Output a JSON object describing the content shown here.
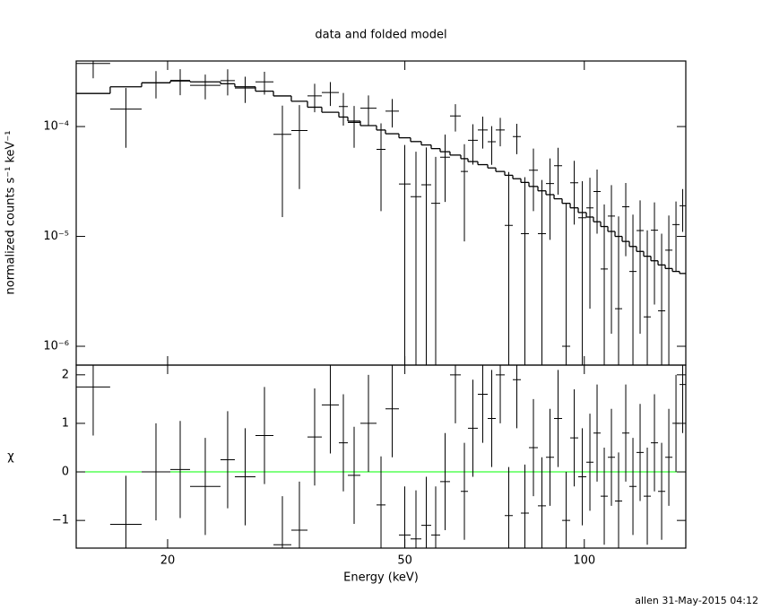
{
  "chart_data": {
    "type": "errorbar",
    "title": "data and folded model",
    "xlabel": "Energy (keV)",
    "xlog": true,
    "xlim": [
      14.05,
      148.0
    ],
    "xticks": [
      20,
      50,
      100
    ],
    "bins": [
      14.05,
      16.02,
      18.09,
      20.21,
      21.81,
      24.53,
      25.93,
      28.08,
      30.1,
      32.25,
      34.33,
      36.28,
      38.75,
      40.12,
      42.11,
      44.82,
      46.4,
      48.87,
      51.12,
      53.29,
      55.36,
      57.31,
      59.53,
      62.06,
      63.81,
      66.28,
      68.86,
      71.04,
      73.54,
      75.87,
      78.27,
      80.75,
      83.59,
      86.24,
      88.97,
      91.79,
      94.7,
      97.69,
      100.79,
      103.61,
      106.52,
      109.52,
      112.59,
      115.75,
      119.01,
      122.35,
      125.78,
      129.32,
      132.95,
      136.7,
      140.54,
      144.48,
      148.0
    ],
    "panels": [
      {
        "ylabel": "normalized counts s⁻¹ keV⁻¹",
        "ylog": true,
        "ylim": [
          6.74e-07,
          0.000395
        ],
        "yticks": [
          {
            "value": 0.0001,
            "label": "10⁻⁴"
          },
          {
            "value": 1e-05,
            "label": "10⁻⁵"
          },
          {
            "value": 1e-06,
            "label": "10⁻⁶"
          }
        ],
        "series": [
          {
            "style": "errorbar",
            "color": "#000000",
            "values": [
              0.000375,
              0.000144,
              0.00025,
              0.000263,
              0.000237,
              0.000262,
              0.000224,
              0.000255,
              8.5e-05,
              9.2e-05,
              0.00019,
              0.000204,
              0.000152,
              0.000109,
              0.000147,
              6.2e-05,
              0.000138,
              3e-05,
              2.3e-05,
              2.95e-05,
              2e-05,
              5.26e-05,
              0.000125,
              3.9e-05,
              7.5e-05,
              9.3e-05,
              7.28e-05,
              9.3e-05,
              1.26e-05,
              8.1e-05,
              1.06e-05,
              4e-05,
              1.06e-05,
              3.03e-05,
              4.4e-05,
              1e-06,
              3.08e-05,
              1.48e-05,
              1.82e-05,
              2.56e-05,
              5.05e-06,
              1.53e-05,
              2.2e-06,
              1.86e-05,
              4.8e-06,
              1.13e-05,
              1.85e-06,
              1.14e-05,
              2.1e-06,
              7.5e-06,
              1.28e-05,
              1.9e-05
            ],
            "errors": [
              0.0001,
              8e-05,
              7e-05,
              7e-05,
              6e-05,
              7e-05,
              6e-05,
              6e-05,
              7e-05,
              6.5e-05,
              5.5e-05,
              5e-05,
              5e-05,
              4.5e-05,
              4.5e-05,
              4.5e-05,
              4e-05,
              3.8e-05,
              3.6e-05,
              3.5e-05,
              3.3e-05,
              3.2e-05,
              3.5e-05,
              3e-05,
              3e-05,
              3e-05,
              2.8e-05,
              2.7e-05,
              2.6e-05,
              2.5e-05,
              2.4e-05,
              2.3e-05,
              2.2e-05,
              2.1e-05,
              2e-05,
              1.9e-05,
              1.8e-05,
              1.7e-05,
              1.6e-05,
              1.5e-05,
              1.45e-05,
              1.4e-05,
              1.3e-05,
              1.2e-05,
              1.1e-05,
              1e-05,
              9.5e-06,
              9e-06,
              8.5e-06,
              8e-06,
              8e-06,
              8e-06
            ]
          },
          {
            "style": "step",
            "color": "#000000",
            "values": [
              0.0002,
              0.00023,
              0.00025,
              0.00026,
              0.000255,
              0.000245,
              0.00023,
              0.00021,
              0.00019,
              0.00017,
              0.00015,
              0.000135,
              0.000122,
              0.000112,
              0.000102,
              9.3e-05,
              8.6e-05,
              7.9e-05,
              7.3e-05,
              6.8e-05,
              6.3e-05,
              5.9e-05,
              5.5e-05,
              5.1e-05,
              4.8e-05,
              4.5e-05,
              4.2e-05,
              3.9e-05,
              3.6e-05,
              3.35e-05,
              3.1e-05,
              2.85e-05,
              2.6e-05,
              2.4e-05,
              2.2e-05,
              2e-05,
              1.82e-05,
              1.65e-05,
              1.5e-05,
              1.36e-05,
              1.23e-05,
              1.11e-05,
              1e-05,
              9e-06,
              8.1e-06,
              7.3e-06,
              6.6e-06,
              6e-06,
              5.5e-06,
              5.1e-06,
              4.8e-06,
              4.6e-06
            ]
          }
        ]
      },
      {
        "ylabel": "χ",
        "ylog": false,
        "ylim": [
          -1.57,
          2.2
        ],
        "yticks": [
          {
            "value": -1,
            "label": "−1"
          },
          0,
          1,
          2
        ],
        "reference_line": {
          "value": 0,
          "color": "#00ff00"
        },
        "series": [
          {
            "style": "errorbar",
            "color": "#000000",
            "values": [
              1.75,
              -1.08,
              0.0,
              0.05,
              -0.3,
              0.25,
              -0.1,
              0.75,
              -1.5,
              -1.2,
              0.72,
              1.38,
              0.6,
              -0.07,
              1.0,
              -0.68,
              1.3,
              -1.3,
              -1.38,
              -1.1,
              -1.3,
              -0.2,
              2.0,
              -0.4,
              0.9,
              1.6,
              1.1,
              2.0,
              -0.9,
              1.9,
              -0.85,
              0.5,
              -0.7,
              0.3,
              1.1,
              -1.0,
              0.7,
              -0.1,
              0.2,
              0.8,
              -0.5,
              0.3,
              -0.6,
              0.8,
              -0.3,
              0.4,
              -0.5,
              0.6,
              -0.4,
              0.3,
              1.0,
              1.8
            ],
            "errors": [
              1,
              1,
              1,
              1,
              1,
              1,
              1,
              1,
              1,
              1,
              1,
              1,
              1,
              1,
              1,
              1,
              1,
              1,
              1,
              1,
              1,
              1,
              1,
              1,
              1,
              1,
              1,
              1,
              1,
              1,
              1,
              1,
              1,
              1,
              1,
              1,
              1,
              1,
              1,
              1,
              1,
              1,
              1,
              1,
              1,
              1,
              1,
              1,
              1,
              1,
              1,
              1
            ]
          }
        ]
      }
    ]
  },
  "footer": "allen 31-May-2015 04:12"
}
